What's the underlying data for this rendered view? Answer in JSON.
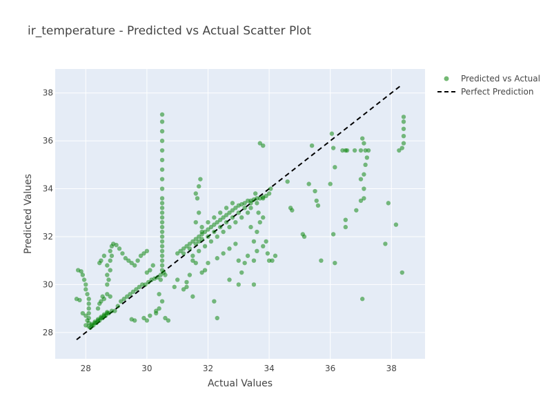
{
  "chart_data": {
    "type": "scatter",
    "title": "ir_temperature - Predicted vs Actual Scatter Plot",
    "xlabel": "Actual Values",
    "ylabel": "Predicted Values",
    "xlim": [
      27.0,
      39.1
    ],
    "ylim": [
      26.9,
      39.0
    ],
    "xticks": [
      28,
      30,
      32,
      34,
      36,
      38
    ],
    "yticks": [
      28,
      30,
      32,
      34,
      36,
      38
    ],
    "grid": true,
    "legend_position": "top-right",
    "colors": {
      "plot_bg": "#E5ECF6",
      "grid": "#ffffff",
      "points": "#008000",
      "line": "#000000"
    },
    "series": [
      {
        "name": "Predicted vs Actual",
        "mode": "markers",
        "points": [
          [
            27.75,
            30.6
          ],
          [
            27.85,
            30.55
          ],
          [
            27.9,
            30.4
          ],
          [
            27.95,
            30.2
          ],
          [
            28.0,
            30.0
          ],
          [
            28.0,
            29.8
          ],
          [
            28.05,
            29.6
          ],
          [
            28.1,
            29.4
          ],
          [
            28.1,
            29.2
          ],
          [
            28.1,
            29.0
          ],
          [
            28.1,
            28.8
          ],
          [
            28.1,
            28.6
          ],
          [
            27.7,
            29.4
          ],
          [
            27.8,
            29.35
          ],
          [
            27.9,
            28.8
          ],
          [
            28.0,
            28.7
          ],
          [
            28.05,
            28.5
          ],
          [
            28.1,
            28.4
          ],
          [
            28.2,
            28.3
          ],
          [
            28.3,
            28.4
          ],
          [
            28.4,
            28.5
          ],
          [
            28.5,
            28.6
          ],
          [
            28.6,
            28.7
          ],
          [
            28.7,
            28.8
          ],
          [
            28.1,
            28.25
          ],
          [
            28.2,
            28.35
          ],
          [
            28.3,
            28.45
          ],
          [
            28.4,
            28.55
          ],
          [
            28.5,
            28.65
          ],
          [
            28.6,
            28.75
          ],
          [
            28.7,
            28.85
          ],
          [
            28.0,
            28.3
          ],
          [
            28.15,
            28.2
          ],
          [
            28.25,
            28.3
          ],
          [
            28.35,
            28.4
          ],
          [
            28.45,
            28.5
          ],
          [
            28.55,
            28.6
          ],
          [
            28.65,
            28.7
          ],
          [
            28.75,
            28.8
          ],
          [
            28.85,
            28.9
          ],
          [
            28.45,
            29.2
          ],
          [
            28.5,
            29.3
          ],
          [
            28.55,
            29.5
          ],
          [
            28.4,
            29.0
          ],
          [
            28.6,
            29.4
          ],
          [
            28.7,
            29.6
          ],
          [
            28.8,
            29.5
          ],
          [
            28.7,
            30.0
          ],
          [
            28.75,
            30.2
          ],
          [
            28.7,
            30.4
          ],
          [
            28.8,
            30.6
          ],
          [
            28.7,
            30.8
          ],
          [
            28.8,
            31.0
          ],
          [
            28.85,
            31.2
          ],
          [
            28.8,
            31.4
          ],
          [
            28.85,
            31.6
          ],
          [
            28.9,
            31.7
          ],
          [
            29.0,
            31.65
          ],
          [
            29.1,
            31.5
          ],
          [
            29.2,
            31.3
          ],
          [
            29.3,
            31.1
          ],
          [
            29.4,
            31.0
          ],
          [
            29.5,
            30.9
          ],
          [
            29.6,
            30.8
          ],
          [
            29.7,
            31.0
          ],
          [
            29.8,
            31.2
          ],
          [
            30.0,
            31.4
          ],
          [
            29.9,
            31.3
          ],
          [
            28.6,
            31.2
          ],
          [
            28.5,
            31.0
          ],
          [
            28.45,
            30.9
          ],
          [
            28.95,
            28.9
          ],
          [
            29.05,
            29.1
          ],
          [
            29.15,
            29.3
          ],
          [
            29.25,
            29.4
          ],
          [
            29.35,
            29.5
          ],
          [
            29.45,
            29.6
          ],
          [
            29.55,
            29.7
          ],
          [
            29.65,
            29.8
          ],
          [
            29.75,
            29.9
          ],
          [
            29.85,
            30.0
          ],
          [
            29.95,
            30.0
          ],
          [
            30.05,
            30.1
          ],
          [
            30.15,
            30.2
          ],
          [
            30.25,
            30.25
          ],
          [
            30.35,
            30.3
          ],
          [
            30.45,
            30.4
          ],
          [
            30.0,
            30.5
          ],
          [
            30.1,
            30.6
          ],
          [
            30.2,
            30.8
          ],
          [
            29.5,
            28.55
          ],
          [
            29.6,
            28.5
          ],
          [
            29.9,
            28.6
          ],
          [
            30.0,
            28.5
          ],
          [
            30.1,
            28.7
          ],
          [
            30.3,
            28.8
          ],
          [
            30.6,
            28.6
          ],
          [
            30.7,
            28.5
          ],
          [
            30.5,
            29.3
          ],
          [
            30.4,
            29.6
          ],
          [
            30.5,
            31.0
          ],
          [
            30.5,
            31.2
          ],
          [
            30.5,
            31.4
          ],
          [
            30.5,
            31.6
          ],
          [
            30.5,
            31.8
          ],
          [
            30.5,
            32.0
          ],
          [
            30.5,
            32.2
          ],
          [
            30.5,
            32.4
          ],
          [
            30.5,
            32.6
          ],
          [
            30.5,
            32.8
          ],
          [
            30.5,
            33.0
          ],
          [
            30.5,
            33.2
          ],
          [
            30.5,
            33.4
          ],
          [
            30.5,
            33.6
          ],
          [
            30.5,
            34.0
          ],
          [
            30.5,
            34.4
          ],
          [
            30.5,
            34.8
          ],
          [
            30.5,
            35.2
          ],
          [
            30.5,
            35.6
          ],
          [
            30.5,
            36.0
          ],
          [
            30.5,
            36.4
          ],
          [
            30.5,
            36.8
          ],
          [
            30.5,
            37.1
          ],
          [
            30.5,
            30.6
          ],
          [
            30.5,
            30.8
          ],
          [
            30.45,
            30.2
          ],
          [
            30.55,
            30.5
          ],
          [
            30.6,
            30.4
          ],
          [
            30.4,
            29.0
          ],
          [
            30.3,
            28.9
          ],
          [
            31.0,
            31.3
          ],
          [
            31.1,
            31.4
          ],
          [
            31.2,
            31.5
          ],
          [
            31.3,
            31.6
          ],
          [
            31.4,
            31.7
          ],
          [
            31.5,
            31.8
          ],
          [
            31.6,
            31.9
          ],
          [
            31.7,
            32.0
          ],
          [
            31.8,
            32.1
          ],
          [
            31.9,
            32.2
          ],
          [
            32.0,
            32.3
          ],
          [
            32.1,
            32.4
          ],
          [
            32.2,
            32.5
          ],
          [
            32.3,
            32.6
          ],
          [
            32.4,
            32.7
          ],
          [
            32.5,
            32.8
          ],
          [
            32.6,
            32.9
          ],
          [
            32.7,
            33.0
          ],
          [
            32.8,
            33.1
          ],
          [
            32.9,
            33.2
          ],
          [
            33.0,
            33.3
          ],
          [
            33.1,
            33.35
          ],
          [
            33.2,
            33.4
          ],
          [
            33.3,
            33.5
          ],
          [
            33.4,
            33.5
          ],
          [
            33.5,
            33.55
          ],
          [
            33.6,
            33.6
          ],
          [
            33.7,
            33.6
          ],
          [
            33.8,
            33.65
          ],
          [
            33.9,
            33.7
          ],
          [
            34.0,
            33.8
          ],
          [
            34.05,
            34.0
          ],
          [
            31.2,
            31.3
          ],
          [
            31.4,
            31.5
          ],
          [
            31.6,
            31.7
          ],
          [
            31.8,
            31.9
          ],
          [
            32.0,
            32.0
          ],
          [
            32.2,
            32.2
          ],
          [
            32.4,
            32.4
          ],
          [
            32.6,
            32.6
          ],
          [
            32.8,
            32.8
          ],
          [
            33.0,
            33.0
          ],
          [
            33.2,
            33.2
          ],
          [
            33.4,
            33.4
          ],
          [
            33.6,
            33.4
          ],
          [
            33.8,
            33.6
          ],
          [
            31.5,
            31.2
          ],
          [
            31.7,
            31.4
          ],
          [
            31.9,
            31.6
          ],
          [
            32.1,
            31.8
          ],
          [
            32.3,
            32.0
          ],
          [
            32.5,
            32.2
          ],
          [
            32.7,
            32.4
          ],
          [
            32.9,
            32.6
          ],
          [
            33.1,
            32.8
          ],
          [
            33.3,
            33.0
          ],
          [
            31.8,
            32.4
          ],
          [
            32.0,
            32.6
          ],
          [
            32.2,
            32.8
          ],
          [
            32.4,
            33.0
          ],
          [
            32.6,
            33.2
          ],
          [
            32.8,
            33.4
          ],
          [
            31.7,
            34.1
          ],
          [
            31.75,
            34.4
          ],
          [
            31.6,
            33.8
          ],
          [
            31.65,
            33.6
          ],
          [
            31.7,
            33.0
          ],
          [
            31.6,
            32.6
          ],
          [
            31.8,
            32.2
          ],
          [
            31.7,
            31.8
          ],
          [
            31.5,
            31.0
          ],
          [
            31.6,
            30.9
          ],
          [
            31.4,
            30.4
          ],
          [
            31.3,
            30.1
          ],
          [
            31.2,
            29.8
          ],
          [
            31.8,
            30.5
          ],
          [
            31.9,
            30.6
          ],
          [
            32.0,
            30.9
          ],
          [
            32.3,
            31.1
          ],
          [
            32.5,
            31.3
          ],
          [
            32.7,
            31.5
          ],
          [
            32.9,
            31.7
          ],
          [
            33.0,
            31.0
          ],
          [
            33.1,
            30.5
          ],
          [
            33.3,
            31.2
          ],
          [
            33.5,
            31.0
          ],
          [
            33.6,
            31.4
          ],
          [
            33.8,
            31.6
          ],
          [
            33.9,
            31.8
          ],
          [
            33.6,
            32.2
          ],
          [
            33.7,
            32.6
          ],
          [
            33.8,
            32.8
          ],
          [
            33.4,
            32.4
          ],
          [
            33.5,
            31.8
          ],
          [
            33.65,
            33.0
          ],
          [
            33.4,
            33.2
          ],
          [
            33.55,
            33.8
          ],
          [
            33.7,
            35.9
          ],
          [
            33.8,
            35.8
          ],
          [
            32.3,
            28.6
          ],
          [
            32.2,
            29.3
          ],
          [
            31.5,
            29.5
          ],
          [
            31.3,
            29.9
          ],
          [
            30.9,
            29.9
          ],
          [
            31.0,
            30.2
          ],
          [
            33.0,
            30.0
          ],
          [
            32.7,
            30.2
          ],
          [
            33.2,
            30.9
          ],
          [
            33.5,
            30.0
          ],
          [
            34.7,
            33.2
          ],
          [
            34.75,
            33.1
          ],
          [
            34.1,
            31.0
          ],
          [
            34.2,
            31.2
          ],
          [
            34.0,
            31.0
          ],
          [
            33.95,
            31.3
          ],
          [
            34.6,
            34.3
          ],
          [
            35.1,
            32.1
          ],
          [
            35.15,
            32.0
          ],
          [
            35.3,
            34.2
          ],
          [
            35.4,
            35.8
          ],
          [
            35.5,
            33.9
          ],
          [
            35.55,
            33.5
          ],
          [
            35.6,
            33.3
          ],
          [
            35.7,
            31.0
          ],
          [
            36.0,
            34.2
          ],
          [
            36.05,
            36.3
          ],
          [
            36.1,
            35.7
          ],
          [
            36.1,
            32.1
          ],
          [
            36.15,
            34.9
          ],
          [
            36.15,
            30.9
          ],
          [
            36.4,
            35.6
          ],
          [
            36.5,
            35.6
          ],
          [
            36.55,
            35.6
          ],
          [
            36.5,
            32.7
          ],
          [
            36.5,
            32.4
          ],
          [
            36.8,
            35.6
          ],
          [
            36.85,
            33.1
          ],
          [
            37.0,
            35.6
          ],
          [
            37.0,
            34.4
          ],
          [
            37.05,
            36.1
          ],
          [
            37.1,
            35.9
          ],
          [
            37.15,
            35.6
          ],
          [
            37.15,
            35.0
          ],
          [
            37.1,
            34.6
          ],
          [
            37.1,
            34.0
          ],
          [
            37.1,
            33.6
          ],
          [
            37.25,
            35.6
          ],
          [
            37.2,
            35.3
          ],
          [
            37.0,
            33.5
          ],
          [
            37.05,
            29.4
          ],
          [
            37.8,
            31.7
          ],
          [
            37.9,
            33.4
          ],
          [
            38.15,
            32.5
          ],
          [
            38.25,
            35.6
          ],
          [
            38.35,
            35.7
          ],
          [
            38.4,
            35.9
          ],
          [
            38.4,
            36.2
          ],
          [
            38.4,
            36.5
          ],
          [
            38.4,
            36.8
          ],
          [
            38.4,
            37.0
          ],
          [
            38.35,
            30.5
          ]
        ]
      },
      {
        "name": "Perfect Prediction",
        "mode": "lines",
        "dash": "dash",
        "points": [
          [
            27.7,
            27.7
          ],
          [
            38.35,
            38.35
          ]
        ]
      }
    ]
  }
}
